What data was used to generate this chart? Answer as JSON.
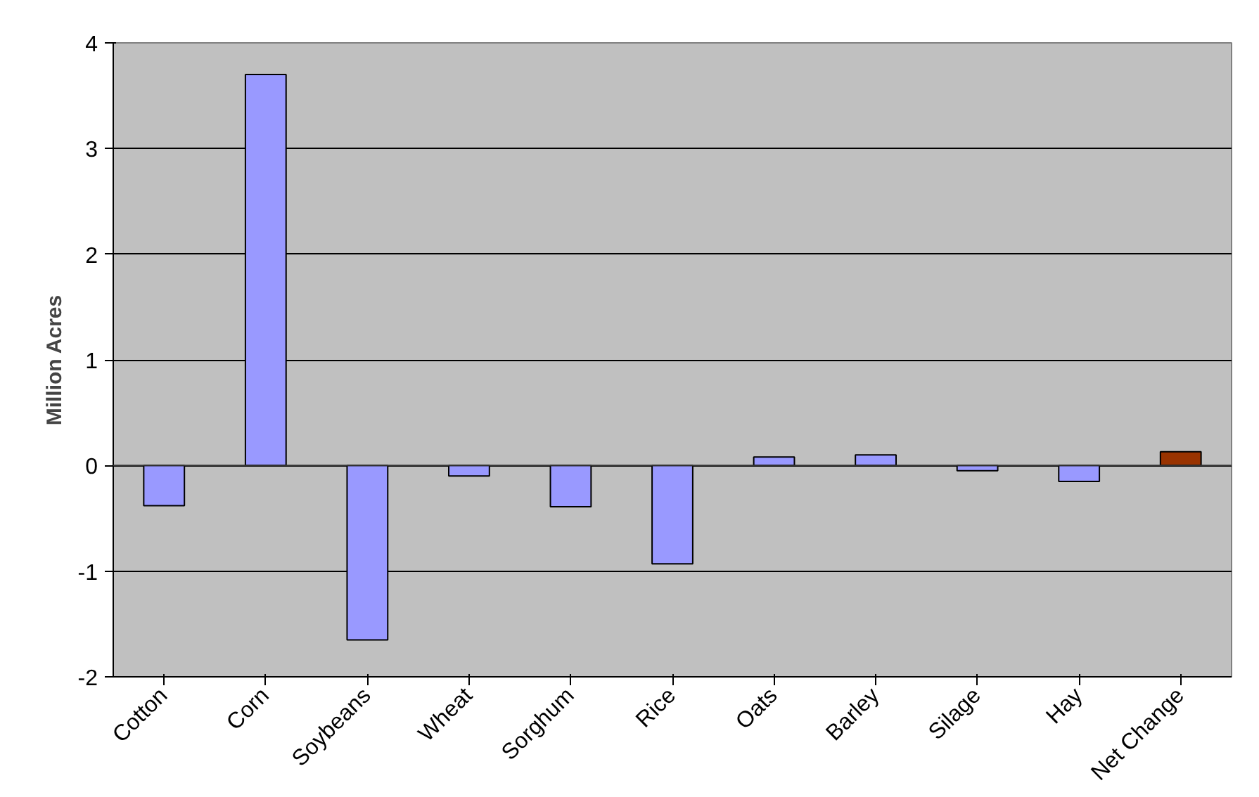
{
  "chart_data": {
    "type": "bar",
    "ylabel": "Million Acres",
    "categories": [
      "Cotton",
      "Corn",
      "Soybeans",
      "Wheat",
      "Sorghum",
      "Rice",
      "Oats",
      "Barley",
      "Silage",
      "Hay",
      "Net Change"
    ],
    "values": [
      -0.38,
      3.7,
      -1.65,
      -0.1,
      -0.39,
      -0.93,
      0.08,
      0.1,
      -0.05,
      -0.15,
      0.13
    ],
    "colors": [
      "#9999ff",
      "#9999ff",
      "#9999ff",
      "#9999ff",
      "#9999ff",
      "#9999ff",
      "#9999ff",
      "#9999ff",
      "#9999ff",
      "#9999ff",
      "#993300"
    ],
    "ylim": [
      -2,
      4
    ],
    "yticks": [
      -2,
      -1,
      0,
      1,
      2,
      3,
      4
    ],
    "grid": "y"
  }
}
